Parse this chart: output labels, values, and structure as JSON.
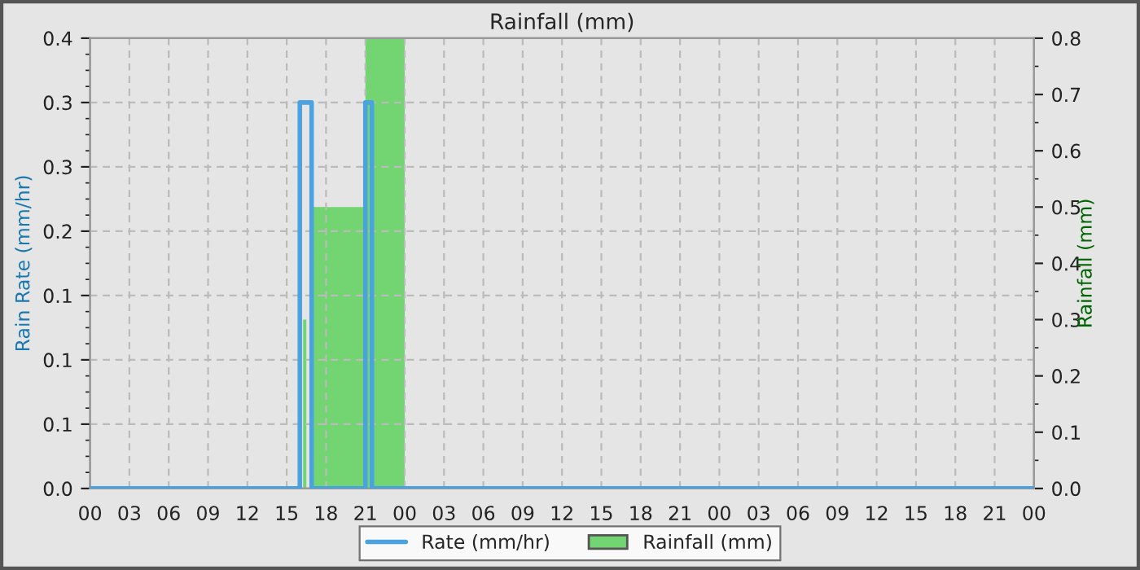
{
  "chart_data": {
    "type": "area",
    "title": "Rainfall (mm)",
    "ylabel": "Rain Rate (mm/hr)",
    "y2label": "Rainfall (mm)",
    "xlim": [
      0,
      72
    ],
    "xticks": [
      {
        "value": 0,
        "label": "00"
      },
      {
        "value": 3,
        "label": "03"
      },
      {
        "value": 6,
        "label": "06"
      },
      {
        "value": 9,
        "label": "09"
      },
      {
        "value": 12,
        "label": "12"
      },
      {
        "value": 15,
        "label": "15"
      },
      {
        "value": 18,
        "label": "18"
      },
      {
        "value": 21,
        "label": "21"
      },
      {
        "value": 24,
        "label": "00"
      },
      {
        "value": 27,
        "label": "03"
      },
      {
        "value": 30,
        "label": "06"
      },
      {
        "value": 33,
        "label": "09"
      },
      {
        "value": 36,
        "label": "12"
      },
      {
        "value": 39,
        "label": "15"
      },
      {
        "value": 42,
        "label": "18"
      },
      {
        "value": 45,
        "label": "21"
      },
      {
        "value": 48,
        "label": "00"
      },
      {
        "value": 51,
        "label": "03"
      },
      {
        "value": 54,
        "label": "06"
      },
      {
        "value": 57,
        "label": "09"
      },
      {
        "value": 60,
        "label": "12"
      },
      {
        "value": 63,
        "label": "15"
      },
      {
        "value": 66,
        "label": "18"
      },
      {
        "value": 69,
        "label": "21"
      },
      {
        "value": 72,
        "label": "00"
      }
    ],
    "ylim": [
      0,
      0.35
    ],
    "yticks": [
      {
        "value": 0,
        "label": "0.0"
      },
      {
        "value": 0.05,
        "label": "0.1"
      },
      {
        "value": 0.1,
        "label": "0.1"
      },
      {
        "value": 0.15,
        "label": "0.1"
      },
      {
        "value": 0.2,
        "label": "0.2"
      },
      {
        "value": 0.25,
        "label": "0.3"
      },
      {
        "value": 0.3,
        "label": "0.3"
      },
      {
        "value": 0.35,
        "label": "0.4"
      }
    ],
    "y2lim": [
      0,
      0.8
    ],
    "y2ticks": [
      {
        "value": 0,
        "label": "0.0"
      },
      {
        "value": 0.1,
        "label": "0.1"
      },
      {
        "value": 0.2,
        "label": "0.2"
      },
      {
        "value": 0.3,
        "label": "0.3"
      },
      {
        "value": 0.4,
        "label": "0.4"
      },
      {
        "value": 0.5,
        "label": "0.5"
      },
      {
        "value": 0.6,
        "label": "0.6"
      },
      {
        "value": 0.7,
        "label": "0.7"
      },
      {
        "value": 0.8,
        "label": "0.8"
      }
    ],
    "series": [
      {
        "name": "Rainfall (mm)",
        "axis": "y2",
        "color": "#72d572",
        "x": [
          16.25,
          16.25,
          16.5,
          16.5,
          17,
          17,
          21,
          21,
          24,
          24
        ],
        "values": [
          0,
          0.3,
          0.3,
          0,
          0,
          0.5,
          0.5,
          0.8,
          0.8,
          0
        ]
      },
      {
        "name": "Rate (mm/hr)",
        "type": "line",
        "color": "#4aa3df",
        "x": [
          0,
          16,
          16,
          16.9,
          16.9,
          21,
          21,
          21.5,
          21.5,
          72
        ],
        "values": [
          0,
          0,
          0.3,
          0.3,
          0,
          0,
          0.3,
          0.3,
          0,
          0
        ]
      }
    ],
    "grid": true,
    "legend": "bottom",
    "line_style": "solid",
    "marker": "none"
  }
}
